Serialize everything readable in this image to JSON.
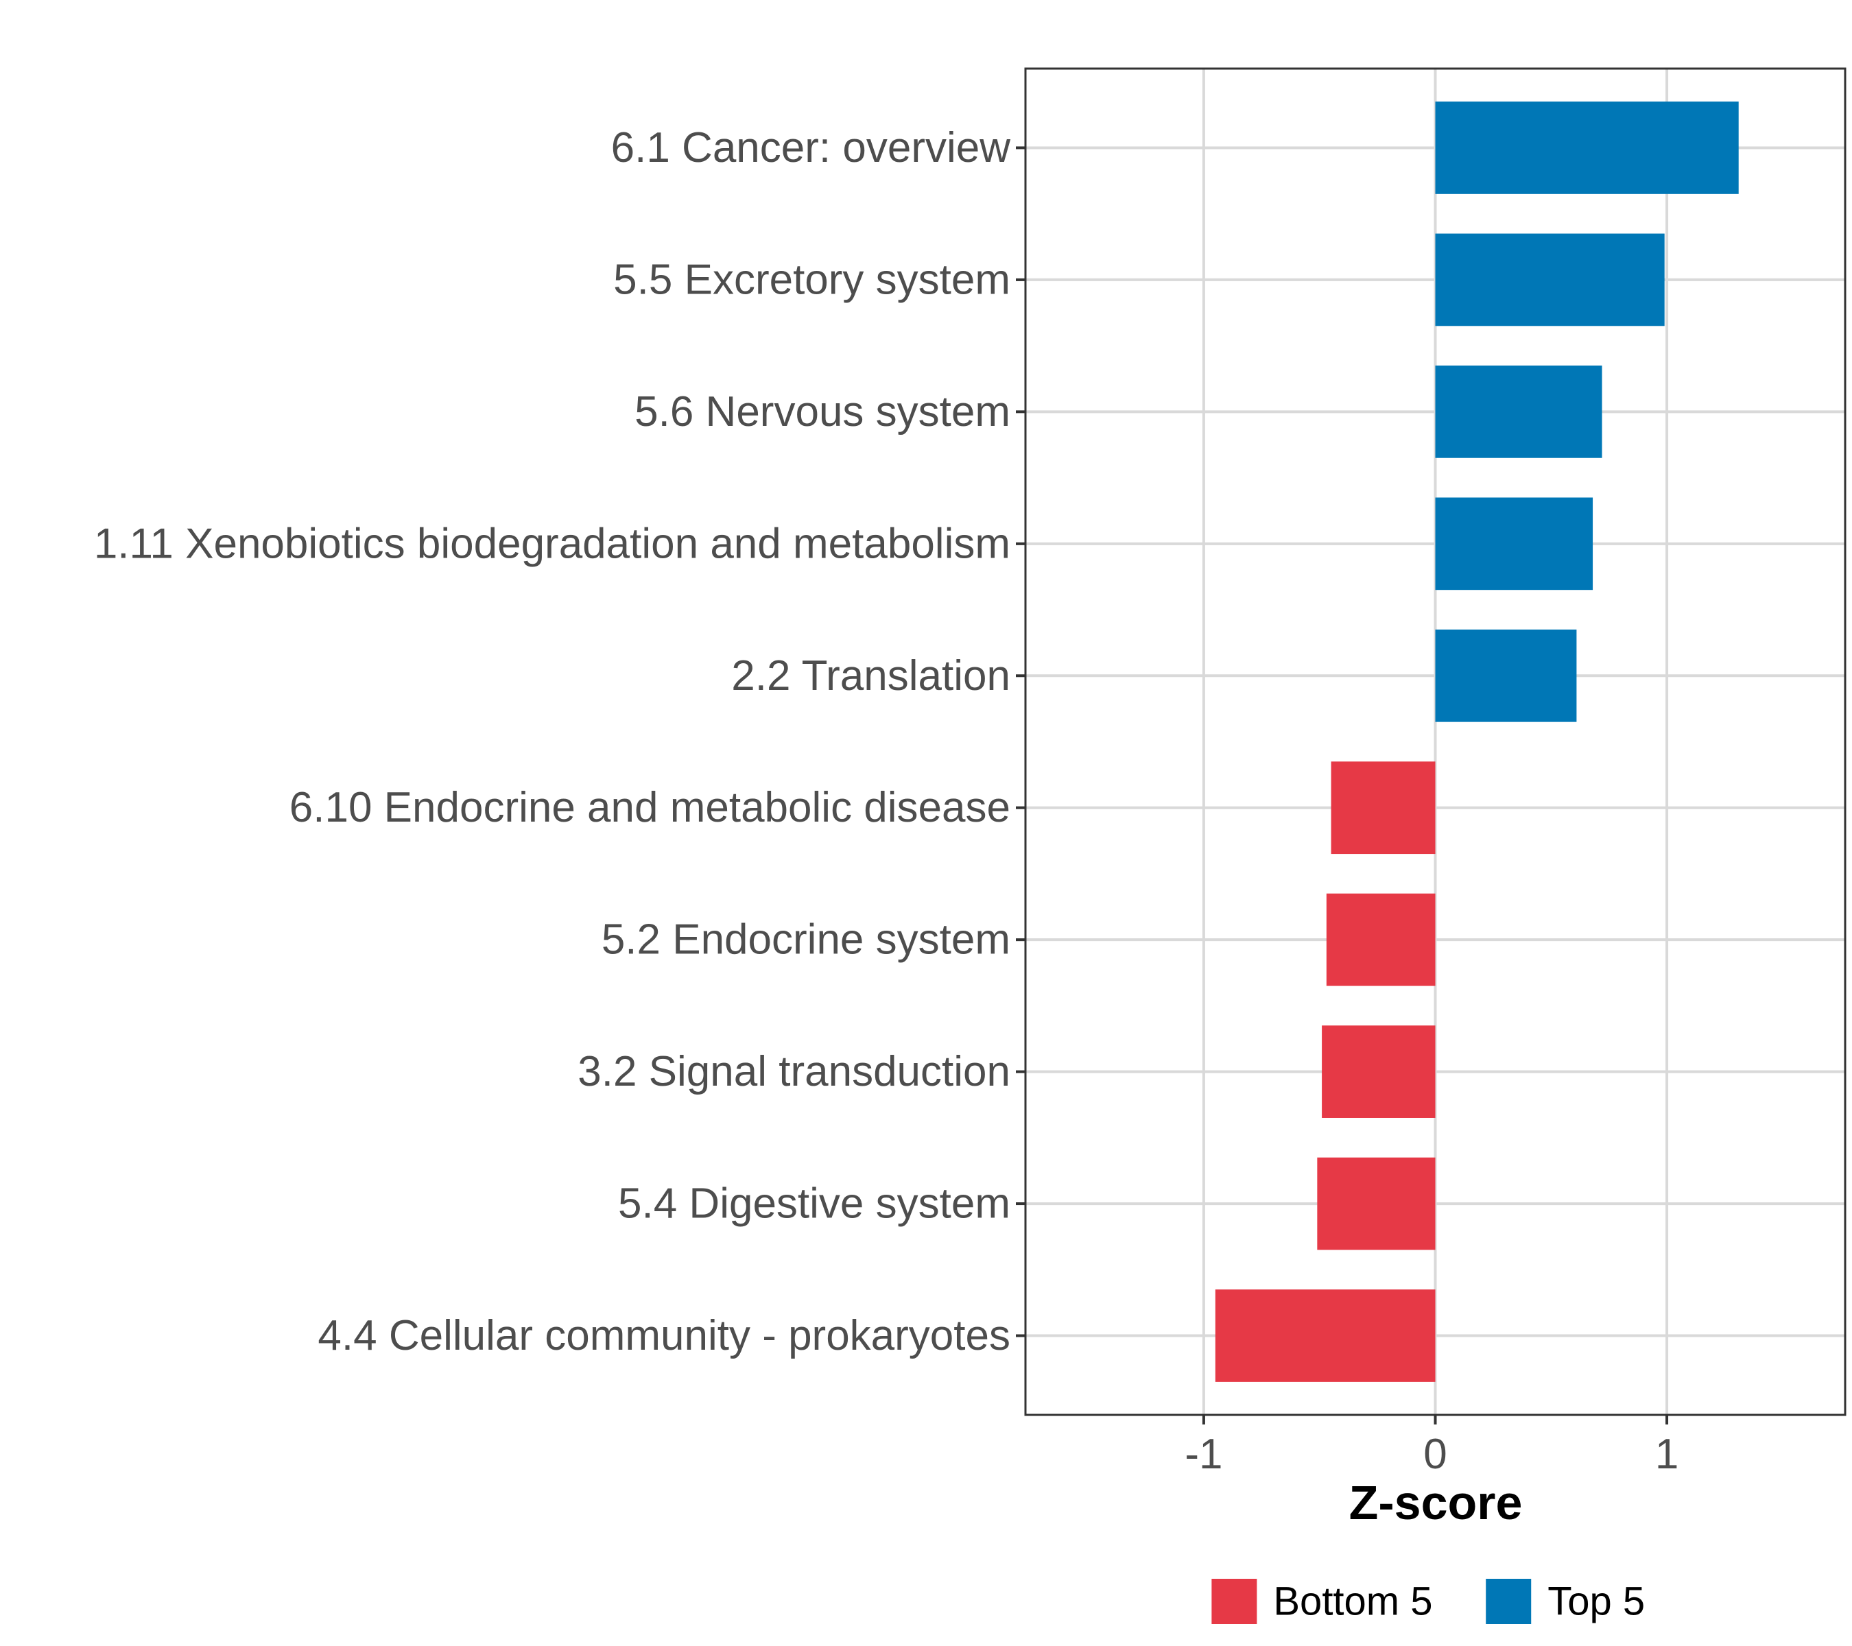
{
  "chart_data": {
    "type": "bar",
    "orientation": "horizontal",
    "title": "",
    "xlabel": "Z-score",
    "ylabel": "",
    "xlim": [
      -1.77,
      1.77
    ],
    "xticks": [
      -1,
      0,
      1
    ],
    "xtick_labels": [
      "-1",
      "0",
      "1"
    ],
    "grid": true,
    "legend_position": "bottom",
    "categories": [
      "6.1 Cancer: overview",
      "5.5 Excretory system",
      "5.6 Nervous system",
      "1.11 Xenobiotics biodegradation and metabolism",
      "2.2 Translation",
      "6.10 Endocrine and metabolic disease",
      "5.2 Endocrine system",
      "3.2 Signal transduction",
      "5.4 Digestive system",
      "4.4 Cellular community - prokaryotes"
    ],
    "values": [
      1.31,
      0.99,
      0.72,
      0.68,
      0.61,
      -0.45,
      -0.47,
      -0.49,
      -0.51,
      -0.95
    ],
    "groups": [
      "Top 5",
      "Top 5",
      "Top 5",
      "Top 5",
      "Top 5",
      "Bottom 5",
      "Bottom 5",
      "Bottom 5",
      "Bottom 5",
      "Bottom 5"
    ],
    "legend": [
      {
        "name": "Bottom 5",
        "color": "#e63946"
      },
      {
        "name": "Top 5",
        "color": "#0077b6"
      }
    ]
  }
}
